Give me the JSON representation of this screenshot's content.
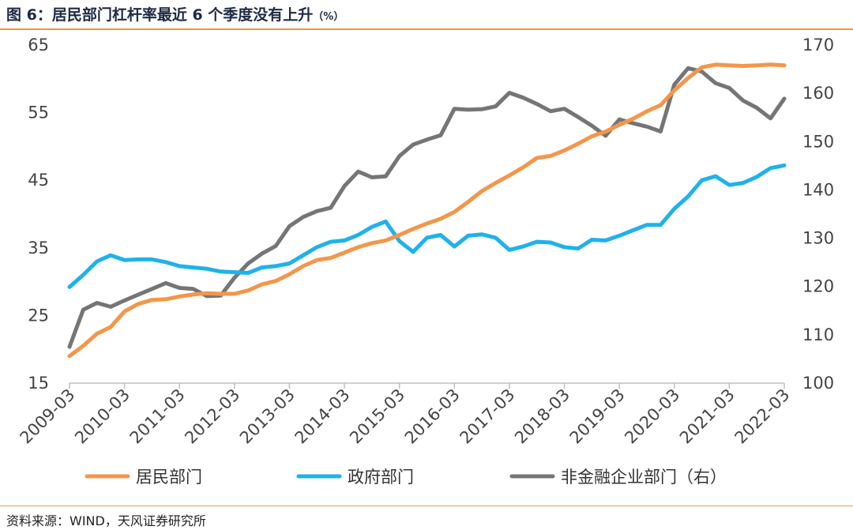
{
  "header": {
    "title": "图 6：居民部门杠杆率最近 6 个季度没有上升",
    "title_unit": "（%）"
  },
  "footer": {
    "source": "资料来源：WIND，天风证券研究所"
  },
  "colors": {
    "household": "#f4964a",
    "government": "#1fb2ea",
    "corporate": "#757575",
    "rule": "#f0963c"
  },
  "chart_data": {
    "type": "line",
    "title": "居民部门杠杆率最近 6 个季度没有上升",
    "x": [
      "2009-03",
      "2009-06",
      "2009-09",
      "2009-12",
      "2010-03",
      "2010-06",
      "2010-09",
      "2010-12",
      "2011-03",
      "2011-06",
      "2011-09",
      "2011-12",
      "2012-03",
      "2012-06",
      "2012-09",
      "2012-12",
      "2013-03",
      "2013-06",
      "2013-09",
      "2013-12",
      "2014-03",
      "2014-06",
      "2014-09",
      "2014-12",
      "2015-03",
      "2015-06",
      "2015-09",
      "2015-12",
      "2016-03",
      "2016-06",
      "2016-09",
      "2016-12",
      "2017-03",
      "2017-06",
      "2017-09",
      "2017-12",
      "2018-03",
      "2018-06",
      "2018-09",
      "2018-12",
      "2019-03",
      "2019-06",
      "2019-09",
      "2019-12",
      "2020-03",
      "2020-06",
      "2020-09",
      "2020-12",
      "2021-03",
      "2021-06",
      "2021-09",
      "2021-12",
      "2022-03"
    ],
    "x_tick_labels": [
      "2009-03",
      "2010-03",
      "2011-03",
      "2012-03",
      "2013-03",
      "2014-03",
      "2015-03",
      "2016-03",
      "2017-03",
      "2018-03",
      "2019-03",
      "2020-03",
      "2021-03",
      "2022-03"
    ],
    "y_left": {
      "min": 15,
      "max": 65,
      "ticks": [
        15,
        25,
        35,
        45,
        55,
        65
      ]
    },
    "y_right": {
      "min": 100,
      "max": 170,
      "ticks": [
        100,
        110,
        120,
        130,
        140,
        150,
        160,
        170
      ]
    },
    "legend_position": "bottom",
    "series": [
      {
        "name": "居民部门",
        "axis": "left",
        "color_key": "household",
        "values": [
          19.0,
          20.5,
          22.3,
          23.3,
          25.6,
          26.7,
          27.3,
          27.4,
          27.8,
          28.1,
          28.3,
          28.2,
          28.2,
          28.7,
          29.6,
          30.1,
          31.1,
          32.3,
          33.2,
          33.5,
          34.3,
          35.1,
          35.7,
          36.1,
          36.9,
          37.8,
          38.6,
          39.3,
          40.3,
          41.8,
          43.4,
          44.6,
          45.7,
          46.9,
          48.3,
          48.6,
          49.4,
          50.4,
          51.5,
          52.2,
          53.2,
          54.1,
          55.2,
          56.1,
          58.3,
          60.1,
          61.7,
          62.1,
          62.0,
          61.9,
          62.0,
          62.1,
          62.0
        ]
      },
      {
        "name": "政府部门",
        "axis": "left",
        "color_key": "government",
        "values": [
          29.2,
          31.0,
          33.0,
          33.9,
          33.2,
          33.3,
          33.3,
          32.9,
          32.3,
          32.1,
          31.9,
          31.5,
          31.4,
          31.3,
          32.1,
          32.3,
          32.7,
          33.9,
          35.1,
          35.9,
          36.1,
          36.9,
          38.1,
          38.9,
          36.0,
          34.4,
          36.5,
          36.9,
          35.2,
          36.8,
          37.0,
          36.5,
          34.7,
          35.2,
          35.9,
          35.8,
          35.1,
          34.9,
          36.2,
          36.1,
          36.8,
          37.6,
          38.4,
          38.4,
          40.8,
          42.6,
          45.0,
          45.6,
          44.3,
          44.6,
          45.5,
          46.8,
          47.2
        ]
      },
      {
        "name": "非金融企业部门（右）",
        "axis": "right",
        "color_key": "corporate",
        "values": [
          107.5,
          115.2,
          116.6,
          115.8,
          117.1,
          118.3,
          119.5,
          120.7,
          119.7,
          119.5,
          118.0,
          118.1,
          121.8,
          124.8,
          126.8,
          128.4,
          132.5,
          134.4,
          135.6,
          136.3,
          140.8,
          143.8,
          142.6,
          142.8,
          147.0,
          149.4,
          150.4,
          151.3,
          156.8,
          156.6,
          156.7,
          157.3,
          160.1,
          159.1,
          157.8,
          156.3,
          156.8,
          155.1,
          153.3,
          151.2,
          154.6,
          153.8,
          153.1,
          152.1,
          161.8,
          165.2,
          164.5,
          162.1,
          161.1,
          158.5,
          157.0,
          154.8,
          158.9
        ]
      }
    ]
  }
}
